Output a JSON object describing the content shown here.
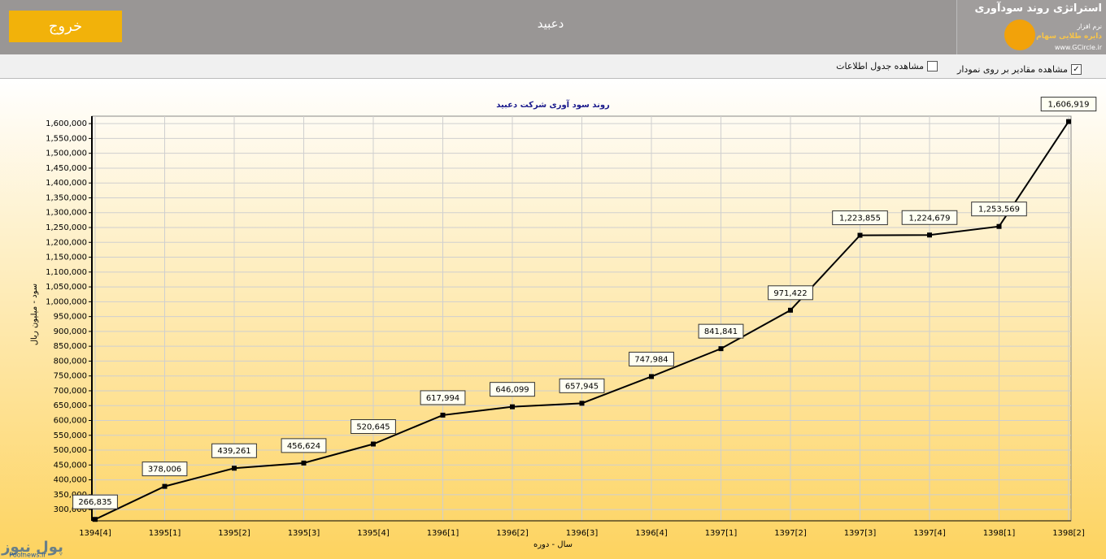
{
  "header": {
    "exit_button": "خروج",
    "page_title": "دعبید",
    "logo": {
      "title": "استراتژی روند سودآوری",
      "subtitle": "نرم افزار",
      "brand": "دایره طلایی سهام",
      "url": "www.GCircle.ir"
    }
  },
  "toolbar": {
    "options": [
      {
        "label": "مشاهده مقادیر بر روی نمودار",
        "checked": true
      },
      {
        "label": "مشاهده جدول اطلاعات",
        "checked": false
      }
    ]
  },
  "watermark": {
    "name": "پول نیوز",
    "url": "Poolnews.ir"
  },
  "chart_data": {
    "type": "line",
    "title": "روند سود آوری شرکت دعبید",
    "y_label": "سود - میلیون ریال",
    "x_label": "سال - دوره",
    "color": "#000000",
    "grid": true,
    "categories": [
      "1394[4]",
      "1395[1]",
      "1395[2]",
      "1395[3]",
      "1395[4]",
      "1396[1]",
      "1396[2]",
      "1396[3]",
      "1396[4]",
      "1397[1]",
      "1397[2]",
      "1397[3]",
      "1397[4]",
      "1398[1]",
      "1398[2]"
    ],
    "values": [
      266835,
      378006,
      439261,
      456624,
      520645,
      617994,
      646099,
      657945,
      747984,
      841841,
      971422,
      1223855,
      1224679,
      1253569,
      1606919
    ],
    "value_labels": [
      "266,835",
      "378,006",
      "439,261",
      "456,624",
      "520,645",
      "617,994",
      "646,099",
      "657,945",
      "747,984",
      "841,841",
      "971,422",
      "1,223,855",
      "1,224,679",
      "1,253,569",
      "1,606,919"
    ],
    "ylim": [
      262000,
      1625000
    ],
    "yticks": [
      {
        "value": 300000,
        "label": "300,000"
      },
      {
        "value": 350000,
        "label": "350,000"
      },
      {
        "value": 400000,
        "label": "400,000"
      },
      {
        "value": 450000,
        "label": "450,000"
      },
      {
        "value": 500000,
        "label": "500,000"
      },
      {
        "value": 550000,
        "label": "550,000"
      },
      {
        "value": 600000,
        "label": "600,000"
      },
      {
        "value": 650000,
        "label": "650,000"
      },
      {
        "value": 700000,
        "label": "700,000"
      },
      {
        "value": 750000,
        "label": "750,000"
      },
      {
        "value": 800000,
        "label": "800,000"
      },
      {
        "value": 850000,
        "label": "850,000"
      },
      {
        "value": 900000,
        "label": "900,000"
      },
      {
        "value": 950000,
        "label": "950,000"
      },
      {
        "value": 1000000,
        "label": "1,000,000"
      },
      {
        "value": 1050000,
        "label": "1,050,000"
      },
      {
        "value": 1100000,
        "label": "1,100,000"
      },
      {
        "value": 1150000,
        "label": "1,150,000"
      },
      {
        "value": 1200000,
        "label": "1,200,000"
      },
      {
        "value": 1250000,
        "label": "1,250,000"
      },
      {
        "value": 1300000,
        "label": "1,300,000"
      },
      {
        "value": 1350000,
        "label": "1,350,000"
      },
      {
        "value": 1400000,
        "label": "1,400,000"
      },
      {
        "value": 1450000,
        "label": "1,450,000"
      },
      {
        "value": 1500000,
        "label": "1,500,000"
      },
      {
        "value": 1550000,
        "label": "1,550,000"
      },
      {
        "value": 1600000,
        "label": "1,600,000"
      }
    ]
  }
}
